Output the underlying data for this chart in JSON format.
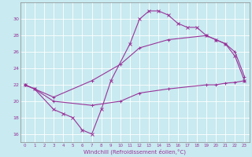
{
  "xlabel": "Windchill (Refroidissement éolien,°C)",
  "bg_color": "#c8eaf0",
  "line_color": "#993399",
  "grid_color": "#ffffff",
  "xlim": [
    -0.5,
    23.5
  ],
  "ylim": [
    15.0,
    32.0
  ],
  "yticks": [
    16,
    18,
    20,
    22,
    24,
    26,
    28,
    30
  ],
  "xticks": [
    0,
    1,
    2,
    3,
    4,
    5,
    6,
    7,
    8,
    9,
    10,
    11,
    12,
    13,
    14,
    15,
    16,
    17,
    18,
    19,
    20,
    21,
    22,
    23
  ],
  "line1_x": [
    0,
    1,
    3,
    4,
    5,
    6,
    7,
    8,
    9,
    11,
    12,
    13,
    14,
    15,
    16,
    17,
    18,
    19,
    20,
    21,
    22,
    23
  ],
  "line1_y": [
    22.0,
    21.5,
    19.0,
    18.5,
    18.0,
    16.5,
    16.0,
    19.0,
    22.5,
    27.0,
    30.0,
    31.0,
    31.0,
    30.5,
    29.5,
    29.0,
    29.0,
    28.0,
    27.5,
    27.0,
    25.5,
    22.5
  ],
  "line2_x": [
    0,
    3,
    7,
    10,
    12,
    15,
    19,
    20,
    21,
    22,
    23
  ],
  "line2_y": [
    22.0,
    20.5,
    22.5,
    24.5,
    26.5,
    27.5,
    28.0,
    27.5,
    27.0,
    26.0,
    23.0
  ],
  "line3_x": [
    0,
    1,
    3,
    7,
    10,
    12,
    15,
    19,
    20,
    21,
    22,
    23
  ],
  "line3_y": [
    22.0,
    21.5,
    20.0,
    19.5,
    20.0,
    21.0,
    21.5,
    22.0,
    22.0,
    22.2,
    22.3,
    22.5
  ],
  "figsize": [
    3.2,
    2.0
  ],
  "dpi": 100
}
